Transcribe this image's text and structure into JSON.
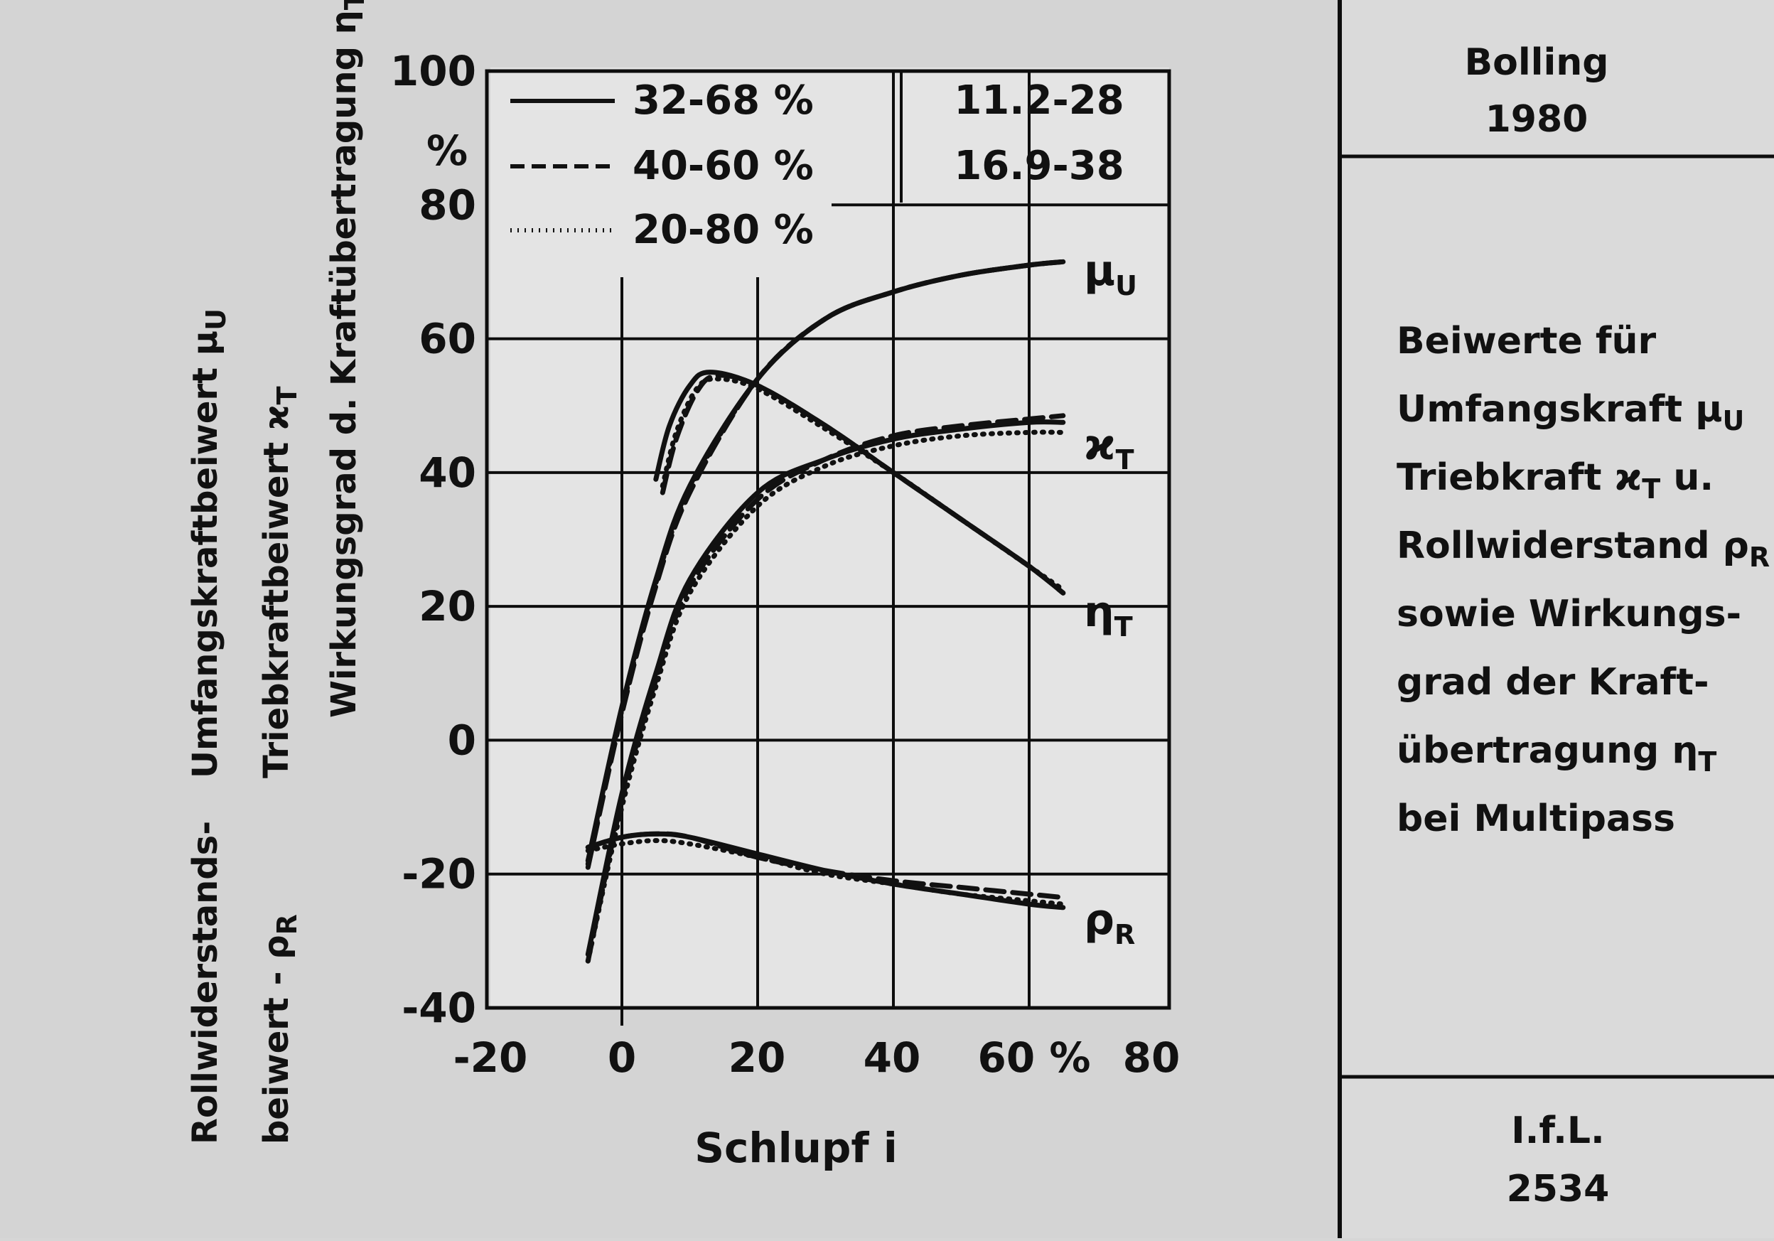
{
  "chart_data": {
    "type": "line",
    "title": "",
    "xlabel": "Schlupf i",
    "xlim": [
      -20,
      80
    ],
    "ylim": [
      -40,
      100
    ],
    "x_ticks": [
      "-20",
      "0",
      "20",
      "40",
      "60 %",
      "80"
    ],
    "y_ticks": [
      "100",
      "80",
      "60",
      "40",
      "20",
      "0",
      "-20",
      "-40"
    ],
    "y_unit_label": "%",
    "ylabels": [
      {
        "text": "Umfangskraftbeiwert",
        "symbol": "μ",
        "sub": "U"
      },
      {
        "text": "Triebkraftbeiwert",
        "symbol": "ϰ",
        "sub": "T"
      },
      {
        "text": "Wirkungsgrad d. Kraftübertragung",
        "symbol": "η",
        "sub": "T"
      },
      {
        "text": "Rollwiderstands-",
        "symbol": "",
        "sub": ""
      },
      {
        "text": "beiwert -",
        "symbol": "ρ",
        "sub": "R"
      }
    ],
    "legend": [
      {
        "label": "32-68 %",
        "style": "solid",
        "right": "11.2-28"
      },
      {
        "label": "40-60 %",
        "style": "dashed",
        "right": "16.9-38"
      },
      {
        "label": "20-80 %",
        "style": "dotted",
        "right": ""
      }
    ],
    "curve_labels": [
      {
        "symbol": "μ",
        "sub": "U",
        "x": 66,
        "y": 71
      },
      {
        "symbol": "ϰ",
        "sub": "T",
        "x": 66,
        "y": 45
      },
      {
        "symbol": "η",
        "sub": "T",
        "x": 66,
        "y": 20
      },
      {
        "symbol": "ρ",
        "sub": "R",
        "x": 66,
        "y": -26
      }
    ],
    "series": [
      {
        "group": "mu_U",
        "style": "solid",
        "x": [
          -5,
          0,
          5,
          10,
          20,
          30,
          40,
          50,
          60,
          65
        ],
        "y": [
          -18,
          5,
          24,
          38,
          54,
          63,
          67,
          69.5,
          71,
          71.5
        ]
      },
      {
        "group": "mu_U",
        "style": "dashed",
        "x": [
          -5,
          0,
          5,
          10,
          20,
          30,
          40,
          50,
          60,
          65
        ],
        "y": [
          -19,
          4,
          23,
          37,
          54,
          63,
          67,
          69.5,
          71,
          71.5
        ]
      },
      {
        "group": "mu_U",
        "style": "dotted",
        "x": [
          -5,
          0,
          5,
          10,
          20,
          30,
          40,
          50,
          60,
          65
        ],
        "y": [
          -18.5,
          4.5,
          23.5,
          37.5,
          54,
          63,
          67,
          69.5,
          71,
          71.5
        ]
      },
      {
        "group": "kappa_T",
        "style": "solid",
        "x": [
          -5,
          0,
          5,
          10,
          20,
          30,
          40,
          50,
          60,
          65
        ],
        "y": [
          -32,
          -8,
          10,
          24,
          37,
          42,
          45,
          46.5,
          47.5,
          47.5
        ]
      },
      {
        "group": "kappa_T",
        "style": "dashed",
        "x": [
          -5,
          0,
          5,
          10,
          20,
          30,
          40,
          50,
          60,
          65
        ],
        "y": [
          -33,
          -9,
          9,
          23,
          36,
          42,
          45.5,
          47,
          48,
          48.5
        ]
      },
      {
        "group": "kappa_T",
        "style": "dotted",
        "x": [
          -5,
          0,
          5,
          10,
          20,
          30,
          40,
          50,
          60,
          65
        ],
        "y": [
          -33,
          -10,
          8,
          22,
          35,
          41,
          44,
          45.5,
          46,
          46
        ]
      },
      {
        "group": "eta_T",
        "style": "solid",
        "x": [
          5,
          7,
          10,
          13,
          20,
          30,
          40,
          50,
          60,
          65
        ],
        "y": [
          39,
          47,
          53,
          55,
          53,
          47,
          40,
          33,
          26,
          22
        ]
      },
      {
        "group": "eta_T",
        "style": "dashed",
        "x": [
          6,
          8,
          11,
          14,
          20,
          30,
          40,
          50,
          60,
          65
        ],
        "y": [
          37,
          45,
          52,
          54.5,
          53,
          47,
          40,
          33,
          26,
          22
        ]
      },
      {
        "group": "eta_T",
        "style": "dotted",
        "x": [
          6,
          8,
          11,
          14,
          20,
          30,
          40,
          50,
          60,
          65
        ],
        "y": [
          38,
          46,
          52.5,
          54,
          52.5,
          46.5,
          40,
          33,
          26,
          22.5
        ]
      },
      {
        "group": "rho_R",
        "style": "solid",
        "x": [
          -5,
          0,
          5,
          10,
          20,
          30,
          40,
          50,
          60,
          65
        ],
        "y": [
          -16,
          -14.5,
          -14,
          -14.5,
          -17,
          -19.5,
          -21.5,
          -23,
          -24.5,
          -25
        ]
      },
      {
        "group": "rho_R",
        "style": "dashed",
        "x": [
          -5,
          0,
          5,
          10,
          20,
          30,
          40,
          50,
          60,
          65
        ],
        "y": [
          -16,
          -14.5,
          -14,
          -14.5,
          -17.5,
          -19.5,
          -21,
          -22,
          -23,
          -23.5
        ]
      },
      {
        "group": "rho_R",
        "style": "dotted",
        "x": [
          -5,
          0,
          5,
          10,
          20,
          30,
          40,
          50,
          60,
          65
        ],
        "y": [
          -16.5,
          -15.5,
          -15,
          -15.5,
          -17.5,
          -20,
          -21.5,
          -23,
          -24,
          -24.5
        ]
      }
    ]
  },
  "side_panel": {
    "header_lines": [
      "Bolling",
      "1980"
    ],
    "description_lines": [
      {
        "text": "Beiwerte für",
        "symbol": "",
        "sub": "",
        "after": ""
      },
      {
        "text": "Umfangskraft ",
        "symbol": "μ",
        "sub": "U",
        "after": ""
      },
      {
        "text": "Triebkraft ",
        "symbol": "ϰ",
        "sub": "T",
        "after": " u."
      },
      {
        "text": "Rollwiderstand ",
        "symbol": "ρ",
        "sub": "R",
        "after": ""
      },
      {
        "text": "sowie Wirkungs-",
        "symbol": "",
        "sub": "",
        "after": ""
      },
      {
        "text": "grad der Kraft-",
        "symbol": "",
        "sub": "",
        "after": ""
      },
      {
        "text": "übertragung ",
        "symbol": "η",
        "sub": "T",
        "after": ""
      },
      {
        "text": "bei Multipass",
        "symbol": "",
        "sub": "",
        "after": ""
      }
    ],
    "footer_lines": [
      "I.f.L.",
      "2534"
    ]
  }
}
